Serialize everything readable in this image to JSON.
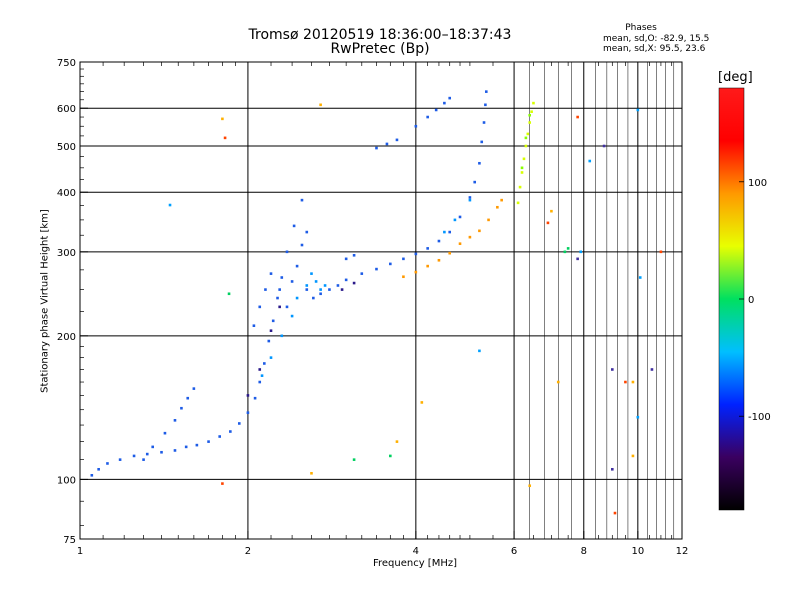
{
  "figure": {
    "title": "Tromsø 20120519 18:36:00–18:37:43",
    "subtitle": "RwPretec (Bp)",
    "phases_header": "Phases",
    "stats": [
      "mean, sd,O: -82.9, 15.5",
      "mean, sd,X:  95.5, 23.6"
    ]
  },
  "chart_data": {
    "type": "scatter",
    "xlabel": "Frequency [MHz]",
    "ylabel": "Stationary phase Virtual Height [km]",
    "x_scale": "log",
    "y_scale": "log",
    "xlim": [
      1,
      12
    ],
    "ylim": [
      75,
      750
    ],
    "x_ticks": [
      1,
      2,
      4,
      6,
      8,
      10,
      12
    ],
    "y_ticks": [
      75,
      100,
      200,
      300,
      400,
      500,
      600,
      750
    ],
    "grid": true,
    "colorbar": {
      "label": "[deg]",
      "range": [
        -180,
        180
      ],
      "ticks": [
        100,
        0,
        -100
      ],
      "colors": [
        "#000000",
        "#3a0060",
        "#0022ff",
        "#00bfff",
        "#00e060",
        "#e8ff00",
        "#ff9900",
        "#ff0000",
        "#ff1a1a"
      ]
    },
    "series": [
      {
        "color": "#1e5ce6",
        "points": [
          [
            1.05,
            102
          ],
          [
            1.08,
            105
          ],
          [
            1.12,
            108
          ],
          [
            1.18,
            110
          ],
          [
            1.25,
            112
          ],
          [
            1.32,
            113
          ],
          [
            1.4,
            114
          ],
          [
            1.48,
            115
          ],
          [
            1.55,
            117
          ],
          [
            1.62,
            118
          ],
          [
            1.7,
            120
          ],
          [
            1.78,
            123
          ],
          [
            1.86,
            126
          ],
          [
            1.93,
            131
          ],
          [
            2.0,
            138
          ],
          [
            2.06,
            148
          ],
          [
            2.1,
            160
          ],
          [
            2.14,
            175
          ],
          [
            2.18,
            195
          ],
          [
            2.22,
            215
          ],
          [
            2.26,
            240
          ],
          [
            2.3,
            265
          ],
          [
            2.35,
            300
          ],
          [
            2.42,
            340
          ],
          [
            2.5,
            385
          ],
          [
            2.05,
            210
          ],
          [
            2.1,
            230
          ],
          [
            2.15,
            250
          ],
          [
            2.2,
            270
          ],
          [
            2.28,
            250
          ],
          [
            2.35,
            230
          ],
          [
            2.4,
            260
          ],
          [
            2.45,
            280
          ],
          [
            2.5,
            310
          ],
          [
            2.55,
            330
          ],
          [
            2.55,
            250
          ],
          [
            2.62,
            240
          ],
          [
            2.7,
            245
          ],
          [
            2.8,
            250
          ],
          [
            2.9,
            255
          ],
          [
            3.0,
            262
          ],
          [
            3.2,
            270
          ],
          [
            3.4,
            276
          ],
          [
            3.6,
            283
          ],
          [
            3.8,
            290
          ],
          [
            4.0,
            297
          ],
          [
            4.2,
            305
          ],
          [
            4.4,
            316
          ],
          [
            4.6,
            330
          ],
          [
            4.8,
            355
          ],
          [
            5.0,
            390
          ],
          [
            5.1,
            420
          ],
          [
            5.2,
            460
          ],
          [
            5.25,
            510
          ],
          [
            5.3,
            560
          ],
          [
            5.33,
            610
          ],
          [
            5.35,
            650
          ],
          [
            3.4,
            495
          ],
          [
            3.55,
            505
          ],
          [
            3.7,
            515
          ],
          [
            4.0,
            550
          ],
          [
            4.2,
            575
          ],
          [
            4.35,
            595
          ],
          [
            4.5,
            615
          ],
          [
            4.6,
            630
          ],
          [
            1.3,
            110
          ],
          [
            1.35,
            117
          ],
          [
            1.42,
            125
          ],
          [
            1.48,
            133
          ],
          [
            1.52,
            141
          ],
          [
            1.56,
            148
          ],
          [
            1.6,
            155
          ],
          [
            3.0,
            290
          ],
          [
            3.1,
            295
          ]
        ]
      },
      {
        "color": "#0096ff",
        "points": [
          [
            2.4,
            220
          ],
          [
            2.45,
            240
          ],
          [
            2.55,
            255
          ],
          [
            2.6,
            270
          ],
          [
            2.65,
            260
          ],
          [
            2.7,
            250
          ],
          [
            2.75,
            255
          ],
          [
            4.5,
            330
          ],
          [
            4.7,
            350
          ],
          [
            5.0,
            385
          ],
          [
            2.3,
            200
          ],
          [
            2.2,
            180
          ],
          [
            2.12,
            165
          ]
        ]
      },
      {
        "color": "#2b1a8a",
        "points": [
          [
            2.0,
            150
          ],
          [
            2.1,
            170
          ],
          [
            2.2,
            205
          ],
          [
            2.28,
            230
          ],
          [
            2.95,
            250
          ],
          [
            3.1,
            258
          ]
        ]
      },
      {
        "color": "#ff9900",
        "points": [
          [
            3.8,
            266
          ],
          [
            4.0,
            272
          ],
          [
            4.2,
            280
          ],
          [
            4.4,
            288
          ],
          [
            4.6,
            298
          ],
          [
            4.8,
            312
          ],
          [
            5.0,
            322
          ],
          [
            5.2,
            332
          ],
          [
            5.4,
            350
          ],
          [
            5.6,
            372
          ],
          [
            5.7,
            385
          ]
        ]
      },
      {
        "color": "#d8ff00",
        "points": [
          [
            6.1,
            380
          ],
          [
            6.15,
            410
          ],
          [
            6.2,
            440
          ],
          [
            6.25,
            470
          ],
          [
            6.3,
            500
          ],
          [
            6.35,
            530
          ],
          [
            6.4,
            560
          ],
          [
            6.45,
            590
          ],
          [
            6.5,
            615
          ]
        ]
      },
      {
        "color": "#88ff00",
        "points": [
          [
            6.2,
            450
          ],
          [
            6.3,
            520
          ],
          [
            6.4,
            580
          ]
        ]
      },
      {
        "color": "#ff4400",
        "points": [
          [
            1.82,
            520
          ],
          [
            1.8,
            98
          ],
          [
            6.9,
            345
          ],
          [
            7.8,
            575
          ],
          [
            9.1,
            85
          ],
          [
            9.5,
            160
          ],
          [
            11.0,
            300
          ]
        ]
      },
      {
        "color": "#ffb000",
        "points": [
          [
            1.8,
            570
          ],
          [
            2.7,
            610
          ],
          [
            2.6,
            103
          ],
          [
            3.7,
            120
          ],
          [
            4.1,
            145
          ],
          [
            6.4,
            97
          ],
          [
            7.0,
            365
          ],
          [
            7.2,
            160
          ],
          [
            9.8,
            160
          ],
          [
            9.8,
            112
          ]
        ]
      },
      {
        "color": "#00d060",
        "points": [
          [
            3.6,
            112
          ],
          [
            3.1,
            110
          ],
          [
            7.4,
            300
          ],
          [
            7.5,
            305
          ],
          [
            1.85,
            245
          ]
        ]
      },
      {
        "color": "#00a0ff",
        "points": [
          [
            1.45,
            376
          ],
          [
            5.2,
            186
          ],
          [
            8.2,
            465
          ],
          [
            7.9,
            300
          ],
          [
            10.0,
            595
          ],
          [
            10.1,
            265
          ],
          [
            10.0,
            135
          ]
        ]
      },
      {
        "color": "#4030a0",
        "points": [
          [
            7.8,
            290
          ],
          [
            9.0,
            170
          ],
          [
            10.6,
            170
          ],
          [
            8.7,
            500
          ],
          [
            9.0,
            105
          ]
        ]
      }
    ]
  }
}
